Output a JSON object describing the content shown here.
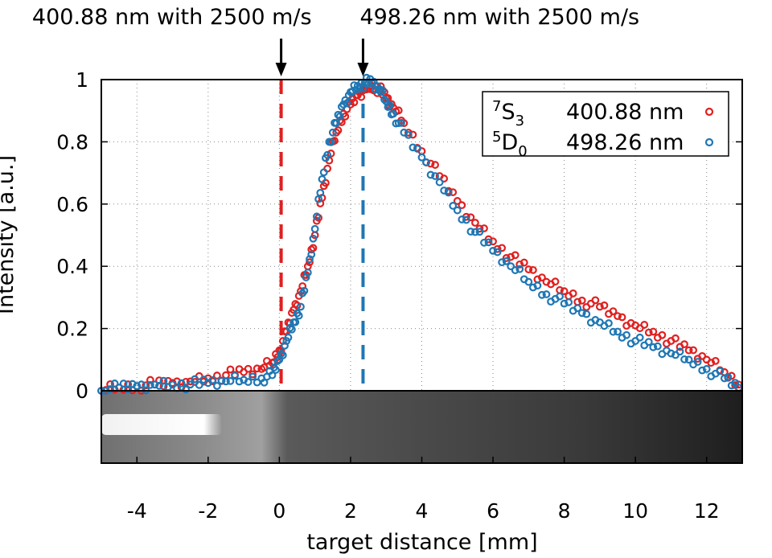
{
  "chart_data": {
    "type": "scatter",
    "xlabel": "target distance [mm]",
    "ylabel": "Intensity [a.u.]",
    "xlim": [
      -5,
      13
    ],
    "ylim": [
      0,
      1
    ],
    "x_ticks": [
      "-4",
      "-2",
      "0",
      "2",
      "4",
      "6",
      "8",
      "10",
      "12"
    ],
    "y_ticks": [
      "0",
      "0.2",
      "0.4",
      "0.6",
      "0.8",
      "1"
    ],
    "grid": true,
    "legend_position": "top-right",
    "annotations": [
      {
        "text": "400.88 nm with 2500 m/s",
        "x": 0.05
      },
      {
        "text": "498.26 nm with 2500 m/s",
        "x": 2.35
      }
    ],
    "vlines": [
      {
        "x": 0.05,
        "color": "#e02020",
        "style": "dashed"
      },
      {
        "x": 2.35,
        "color": "#1f77b4",
        "style": "dashed"
      }
    ],
    "series": [
      {
        "term_letter": "S",
        "term_sup": "7",
        "term_sub": "3",
        "wavelength": "400.88 nm",
        "color": "#e02020",
        "x": [
          -5.0,
          -4.5,
          -4.0,
          -3.5,
          -3.0,
          -2.5,
          -2.0,
          -1.5,
          -1.0,
          -0.5,
          -0.2,
          0.0,
          0.2,
          0.4,
          0.6,
          0.8,
          1.0,
          1.2,
          1.4,
          1.6,
          1.8,
          2.0,
          2.2,
          2.4,
          2.6,
          2.8,
          3.0,
          3.2,
          3.5,
          4.0,
          4.5,
          5.0,
          5.5,
          6.0,
          6.5,
          7.0,
          7.5,
          8.0,
          8.5,
          9.0,
          9.5,
          10.0,
          10.5,
          11.0,
          11.5,
          12.0,
          12.5,
          12.9
        ],
        "y": [
          0.0,
          0.01,
          0.015,
          0.02,
          0.025,
          0.03,
          0.04,
          0.05,
          0.06,
          0.07,
          0.09,
          0.13,
          0.19,
          0.26,
          0.32,
          0.4,
          0.5,
          0.62,
          0.74,
          0.83,
          0.89,
          0.92,
          0.95,
          0.97,
          0.98,
          0.97,
          0.94,
          0.91,
          0.86,
          0.77,
          0.69,
          0.61,
          0.54,
          0.48,
          0.43,
          0.39,
          0.35,
          0.32,
          0.29,
          0.27,
          0.24,
          0.21,
          0.19,
          0.16,
          0.13,
          0.1,
          0.06,
          0.02
        ]
      },
      {
        "term_letter": "D",
        "term_sup": "5",
        "term_sub": "0",
        "wavelength": "498.26 nm",
        "color": "#1f77b4",
        "x": [
          -5.0,
          -4.5,
          -4.0,
          -3.5,
          -3.0,
          -2.5,
          -2.0,
          -1.5,
          -1.0,
          -0.5,
          -0.2,
          0.0,
          0.2,
          0.4,
          0.6,
          0.8,
          1.0,
          1.2,
          1.4,
          1.6,
          1.8,
          2.0,
          2.2,
          2.4,
          2.6,
          2.8,
          3.0,
          3.2,
          3.5,
          4.0,
          4.5,
          5.0,
          5.5,
          6.0,
          6.5,
          7.0,
          7.5,
          8.0,
          8.5,
          9.0,
          9.5,
          10.0,
          10.5,
          11.0,
          11.5,
          12.0,
          12.5,
          12.9
        ],
        "y": [
          0.0,
          0.01,
          0.015,
          0.02,
          0.02,
          0.02,
          0.025,
          0.03,
          0.035,
          0.04,
          0.05,
          0.1,
          0.16,
          0.22,
          0.27,
          0.38,
          0.52,
          0.68,
          0.8,
          0.86,
          0.92,
          0.96,
          0.98,
          0.99,
          0.99,
          0.97,
          0.93,
          0.89,
          0.83,
          0.75,
          0.67,
          0.58,
          0.51,
          0.45,
          0.4,
          0.35,
          0.31,
          0.28,
          0.25,
          0.22,
          0.19,
          0.16,
          0.14,
          0.12,
          0.1,
          0.07,
          0.04,
          0.01
        ]
      }
    ]
  }
}
